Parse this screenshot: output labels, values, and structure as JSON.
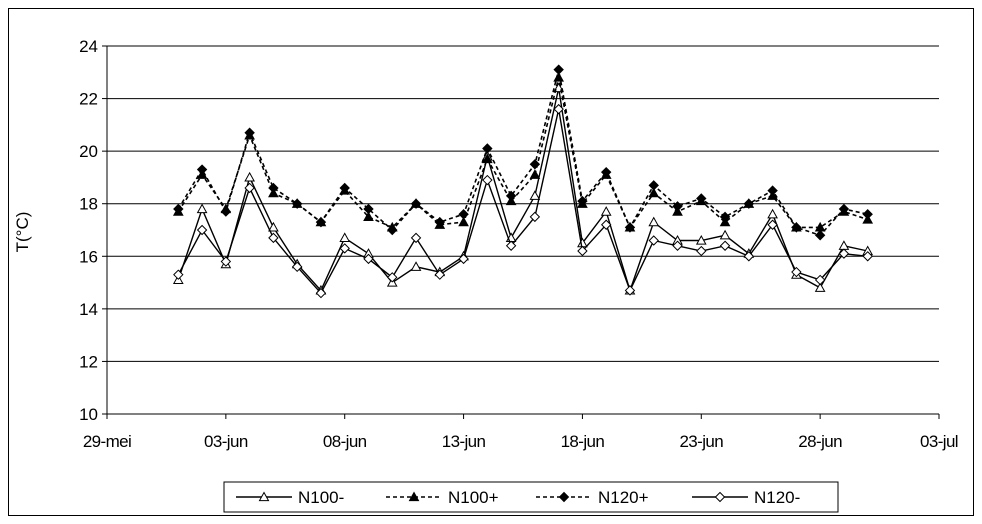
{
  "chart_data": {
    "type": "line",
    "title": "",
    "xlabel": "",
    "ylabel": "T(°C)",
    "ylim": [
      10,
      24
    ],
    "y_ticks": [
      10,
      12,
      14,
      16,
      18,
      20,
      22,
      24
    ],
    "x_ticks": [
      "29-mei",
      "03-jun",
      "08-jun",
      "13-jun",
      "18-jun",
      "23-jun",
      "28-jun",
      "03-jul"
    ],
    "x": [
      "01-jun",
      "02-jun",
      "03-jun",
      "04-jun",
      "05-jun",
      "06-jun",
      "07-jun",
      "08-jun",
      "09-jun",
      "10-jun",
      "11-jun",
      "12-jun",
      "13-jun",
      "14-jun",
      "15-jun",
      "16-jun",
      "17-jun",
      "18-jun",
      "19-jun",
      "20-jun",
      "21-jun",
      "22-jun",
      "23-jun",
      "24-jun",
      "25-jun",
      "26-jun",
      "27-jun",
      "28-jun",
      "29-jun",
      "30-jun"
    ],
    "grid": "horizontal",
    "legend": "bottom",
    "series": [
      {
        "name": "N100-",
        "style": "solid",
        "marker": "triangle-open",
        "values": [
          15.1,
          17.8,
          15.7,
          19.0,
          17.1,
          15.7,
          14.7,
          16.7,
          16.1,
          15.0,
          15.6,
          15.4,
          16.0,
          19.8,
          16.7,
          18.3,
          22.4,
          16.5,
          17.7,
          14.7,
          17.3,
          16.6,
          16.6,
          16.8,
          16.1,
          17.6,
          15.3,
          14.8,
          16.4,
          16.2
        ]
      },
      {
        "name": "N100+",
        "style": "dashed",
        "marker": "triangle-filled",
        "values": [
          17.7,
          19.1,
          17.8,
          20.6,
          18.4,
          18.0,
          17.3,
          18.5,
          17.5,
          17.1,
          18.0,
          17.2,
          17.3,
          19.7,
          18.1,
          19.1,
          22.8,
          18.0,
          19.1,
          17.1,
          18.4,
          17.7,
          18.1,
          17.3,
          18.0,
          18.3,
          17.1,
          17.1,
          17.7,
          17.4
        ]
      },
      {
        "name": "N120+",
        "style": "dashed",
        "marker": "diamond-filled",
        "values": [
          17.8,
          19.3,
          17.7,
          20.7,
          18.6,
          18.0,
          17.3,
          18.6,
          17.8,
          17.0,
          18.0,
          17.3,
          17.6,
          20.1,
          18.3,
          19.5,
          23.1,
          18.1,
          19.2,
          17.1,
          18.7,
          17.9,
          18.2,
          17.5,
          18.0,
          18.5,
          17.1,
          16.8,
          17.8,
          17.6
        ]
      },
      {
        "name": "N120-",
        "style": "solid",
        "marker": "diamond-open",
        "values": [
          15.3,
          17.0,
          15.8,
          18.6,
          16.7,
          15.6,
          14.6,
          16.3,
          15.9,
          15.2,
          16.7,
          15.3,
          15.9,
          18.9,
          16.4,
          17.5,
          21.6,
          16.2,
          17.2,
          14.7,
          16.6,
          16.4,
          16.2,
          16.4,
          16.0,
          17.2,
          15.4,
          15.1,
          16.1,
          16.0
        ]
      }
    ]
  }
}
